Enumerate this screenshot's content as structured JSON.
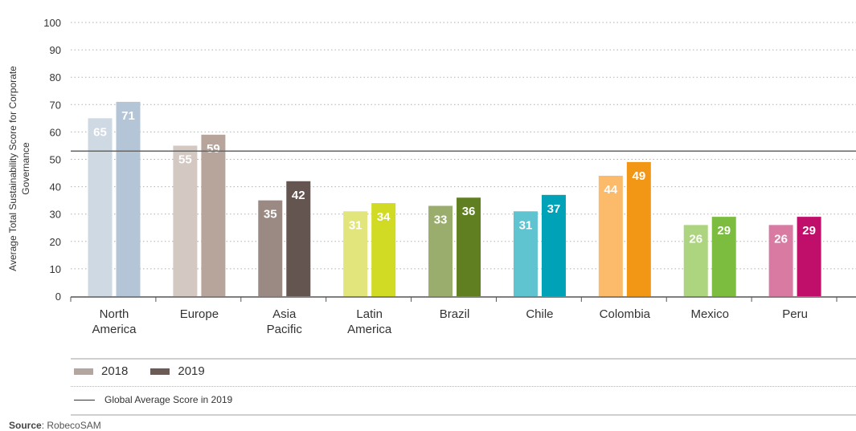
{
  "chart_data": {
    "type": "bar",
    "ylabel": "Average Total Sustainability Score for Corporate Governance",
    "ylim": [
      0,
      100
    ],
    "yticks": [
      0,
      10,
      20,
      30,
      40,
      50,
      60,
      70,
      80,
      90,
      100
    ],
    "grid": true,
    "categories": [
      [
        "North",
        "America"
      ],
      [
        "Europe"
      ],
      [
        "Asia",
        "Pacific"
      ],
      [
        "Latin",
        "America"
      ],
      [
        "Brazil"
      ],
      [
        "Chile"
      ],
      [
        "Colombia"
      ],
      [
        "Mexico"
      ],
      [
        "Peru"
      ]
    ],
    "series": [
      {
        "name": "2018",
        "values": [
          65,
          55,
          35,
          31,
          33,
          31,
          44,
          26,
          26
        ]
      },
      {
        "name": "2019",
        "values": [
          71,
          59,
          42,
          34,
          36,
          37,
          49,
          29,
          29
        ]
      }
    ],
    "colors_2018": [
      "#ced9e4",
      "#d4c8c3",
      "#9b8a84",
      "#e1e57c",
      "#9bad6d",
      "#5fc3d0",
      "#fbbb6a",
      "#add57f",
      "#d97aa3"
    ],
    "colors_2019": [
      "#b3c5d6",
      "#b7a59c",
      "#655550",
      "#d1db24",
      "#5f7f20",
      "#00a2b7",
      "#f29715",
      "#7cbd3f",
      "#bf0f6b"
    ],
    "reference_line": {
      "value": 53,
      "color": "#666666"
    }
  },
  "legend": {
    "series": [
      {
        "label": "2018",
        "color": "#b3a5a0"
      },
      {
        "label": "2019",
        "color": "#6b5a55"
      }
    ],
    "line_label": "Global Average Score in 2019"
  },
  "source": {
    "label": "Source",
    "text": ": RobecoSAM"
  }
}
